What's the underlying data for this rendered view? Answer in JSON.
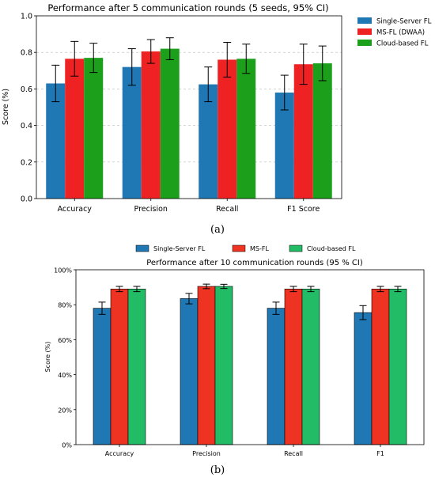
{
  "panels": [
    {
      "label": "(a)",
      "chart_data": {
        "type": "bar",
        "title": "Performance after 5 communication rounds (5 seeds, 95% CI)",
        "xlabel": "",
        "ylabel": "Score (%)",
        "ylim": [
          0,
          1.0
        ],
        "yticks": [
          "0.0",
          "0.2",
          "0.4",
          "0.6",
          "0.8",
          "1.0"
        ],
        "grid": true,
        "legend_position": "right",
        "categories": [
          "Accuracy",
          "Precision",
          "Recall",
          "F1 Score"
        ],
        "series": [
          {
            "name": "Single-Server FL",
            "color": "#1f77b4",
            "values": [
              0.63,
              0.72,
              0.625,
              0.58
            ],
            "err": [
              0.1,
              0.1,
              0.095,
              0.095
            ]
          },
          {
            "name": "MS-FL (DWAA)",
            "color": "#ee2222",
            "values": [
              0.765,
              0.805,
              0.76,
              0.735
            ],
            "err": [
              0.095,
              0.065,
              0.095,
              0.11
            ]
          },
          {
            "name": "Cloud-based FL",
            "color": "#1ca01c",
            "values": [
              0.77,
              0.82,
              0.765,
              0.74
            ],
            "err": [
              0.08,
              0.06,
              0.08,
              0.095
            ]
          }
        ]
      }
    },
    {
      "label": "(b)",
      "chart_data": {
        "type": "bar",
        "title": "Performance after 10 communication rounds (95 % CI)",
        "xlabel": "",
        "ylabel": "Score (%)",
        "ylim": [
          0,
          100
        ],
        "yticks": [
          "0%",
          "20%",
          "40%",
          "60%",
          "80%",
          "100%"
        ],
        "grid": false,
        "legend_position": "top",
        "categories": [
          "Accuracy",
          "Precision",
          "Recall",
          "F1"
        ],
        "series": [
          {
            "name": "Single-Server FL",
            "color": "#1f77b4",
            "values": [
              78,
              83.5,
              78,
              75.5
            ],
            "err": [
              3.5,
              3,
              3.5,
              4
            ]
          },
          {
            "name": "MS-FL",
            "color": "#ee3322",
            "values": [
              89,
              90.5,
              89,
              89
            ],
            "err": [
              1.5,
              1.3,
              1.5,
              1.5
            ]
          },
          {
            "name": "Cloud-based FL",
            "color": "#22bb66",
            "values": [
              89,
              90.5,
              89,
              89
            ],
            "err": [
              1.5,
              1.2,
              1.5,
              1.5
            ]
          }
        ]
      }
    }
  ]
}
